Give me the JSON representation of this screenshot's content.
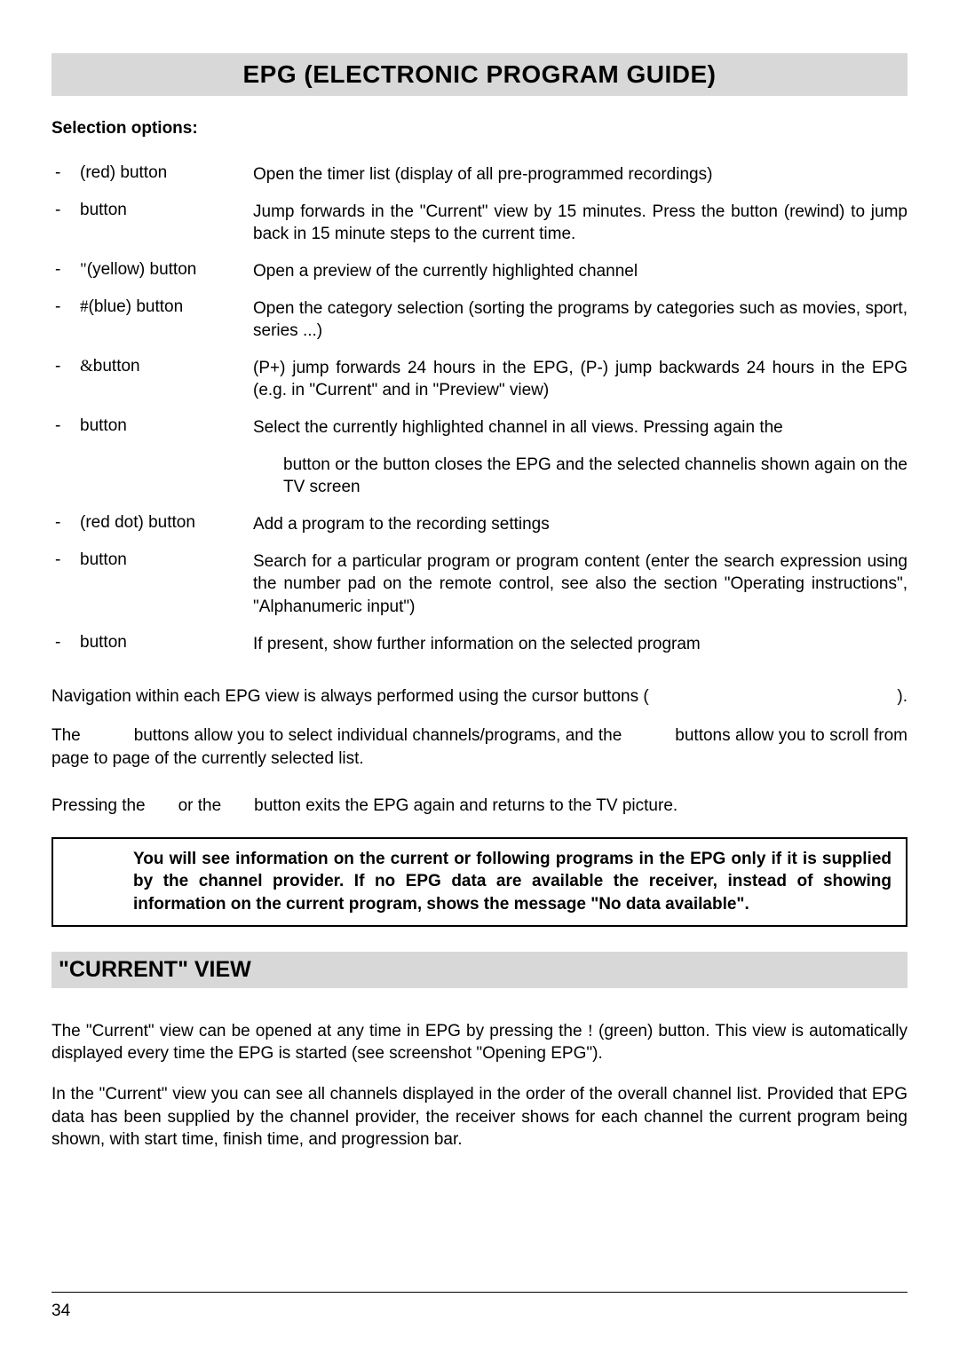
{
  "title": "EPG (ELECTRONIC PROGRAM GUIDE)",
  "subheading": "Selection options:",
  "options": [
    {
      "label": "(red) button",
      "desc": "Open the timer list (display of all pre-programmed recordings)"
    },
    {
      "label": "button",
      "desc": "Jump forwards in the \"Current\" view by 15 minutes. Press the button (rewind) to jump back in 15 minute steps to the current time."
    },
    {
      "label": "(yellow) button",
      "sym": "\"",
      "desc": "Open a preview of the currently highlighted channel"
    },
    {
      "label": "(blue) button",
      "sym": "#",
      "desc": "Open the category selection (sorting the programs by categories such as movies, sport, series ...)"
    },
    {
      "label": "button",
      "sym": "&",
      "desc": "(P+) jump forwards 24 hours in the EPG, (P-) jump backwards 24 hours in the EPG (e.g. in \"Current\" and in \"Preview\" view)"
    },
    {
      "label": "button",
      "desc": "Select the currently highlighted channel in all views. Pressing again the"
    },
    {
      "label": "",
      "desc": "button or the       button closes the EPG and the selected channelis shown again on the TV screen",
      "indent": true
    },
    {
      "label": "(red dot) button",
      "desc": "Add a program to the recording settings"
    },
    {
      "label": "button",
      "desc": "Search for a particular program or program content (enter the search expression using the number pad on the remote control, see also the section \"Operating instructions\", \"Alphanumeric input\")"
    },
    {
      "label": "button",
      "desc": "If present, show further information on the selected program"
    }
  ],
  "nav1": "Navigation within each EPG view is always performed using the cursor buttons (",
  "nav1_end": ").",
  "nav2a": "The",
  "nav2b": "buttons allow you to select individual channels/programs, and the",
  "nav2c": "buttons allow you to scroll from page to page of the currently selected list.",
  "nav3a": "Pressing the",
  "nav3b": "or the",
  "nav3c": "button exits the EPG again and returns to the TV picture.",
  "infobox": "You will see information on the current or following programs in the EPG only if it is supplied by the channel provider. If no EPG data are available the receiver, instead of showing information on the current program, shows the message \"No data available\".",
  "section2": "\"CURRENT\" VIEW",
  "para1a": "The \"Current\" view can be opened at any time in EPG by pressing the ",
  "para1sym": "!",
  "para1b": " (green) button. This view is automatically displayed every time the EPG is started (see screenshot \"Opening EPG\").",
  "para2": "In the \"Current\" view you can see all channels displayed in the order of the overall channel list. Provided that EPG data has been supplied by the channel provider, the receiver shows for each channel the current program being shown, with start time, finish time, and progression bar.",
  "pagenum": "34"
}
